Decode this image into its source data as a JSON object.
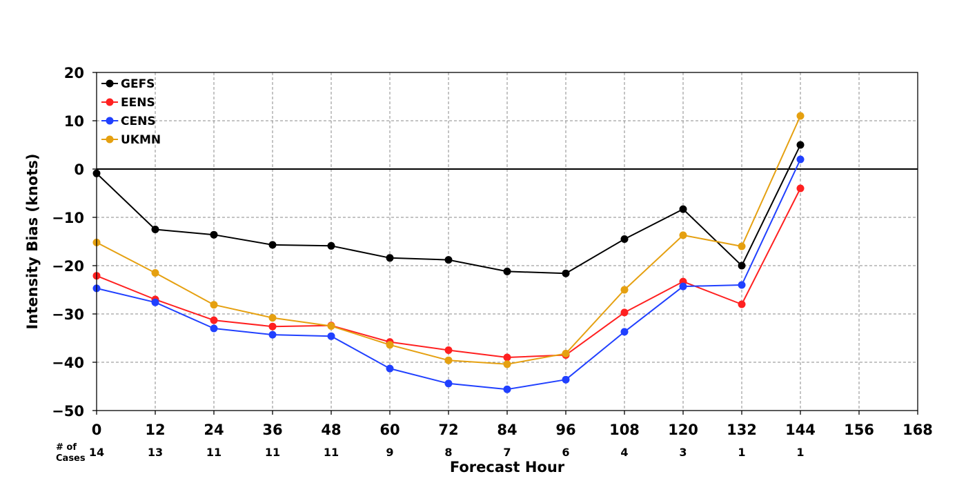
{
  "chart_data": {
    "type": "line",
    "xlabel": "Forecast Hour",
    "ylabel": "Intensity Bias (knots)",
    "xlim": [
      0,
      168
    ],
    "ylim": [
      -50,
      20
    ],
    "x_ticks": [
      0,
      12,
      24,
      36,
      48,
      60,
      72,
      84,
      96,
      108,
      120,
      132,
      144,
      156,
      168
    ],
    "y_ticks": [
      20,
      10,
      0,
      -10,
      -20,
      -30,
      -40,
      -50
    ],
    "x_tick_labels": [
      "0",
      "12",
      "24",
      "36",
      "48",
      "60",
      "72",
      "84",
      "96",
      "108",
      "120",
      "132",
      "144",
      "156",
      "168"
    ],
    "y_tick_labels": [
      "20",
      "10",
      "0",
      "−10",
      "−20",
      "−30",
      "−40",
      "−50"
    ],
    "grid": true,
    "grid_style": "dashed",
    "zero_line": true,
    "legend_position": "top-left",
    "cases_title_line1": "# of",
    "cases_title_line2": "Cases",
    "cases": {
      "x": [
        0,
        12,
        24,
        36,
        48,
        60,
        72,
        84,
        96,
        108,
        120,
        132,
        144
      ],
      "labels": [
        "14",
        "13",
        "11",
        "11",
        "11",
        "9",
        "8",
        "7",
        "6",
        "4",
        "3",
        "1",
        "1"
      ]
    },
    "x": [
      0,
      12,
      24,
      36,
      48,
      60,
      72,
      84,
      96,
      108,
      120,
      132,
      144
    ],
    "series": [
      {
        "name": "GEFS",
        "color": "#000000",
        "values": [
          -0.9,
          -12.5,
          -13.6,
          -15.7,
          -15.9,
          -18.4,
          -18.8,
          -21.2,
          -21.6,
          -14.5,
          -8.3,
          -20.0,
          5.0
        ]
      },
      {
        "name": "EENS",
        "color": "#ff2020",
        "values": [
          -22.1,
          -27.0,
          -31.3,
          -32.6,
          -32.4,
          -35.8,
          -37.5,
          -39.0,
          -38.5,
          -29.7,
          -23.3,
          -28.0,
          -4.0
        ]
      },
      {
        "name": "CENS",
        "color": "#2040ff",
        "values": [
          -24.7,
          -27.6,
          -33.0,
          -34.3,
          -34.6,
          -41.3,
          -44.4,
          -45.6,
          -43.6,
          -33.7,
          -24.3,
          -24.0,
          2.0
        ]
      },
      {
        "name": "UKMN",
        "color": "#e5a010",
        "values": [
          -15.2,
          -21.5,
          -28.1,
          -30.8,
          -32.5,
          -36.4,
          -39.6,
          -40.4,
          -38.2,
          -25.0,
          -13.7,
          -16.0,
          11.0
        ]
      }
    ]
  }
}
